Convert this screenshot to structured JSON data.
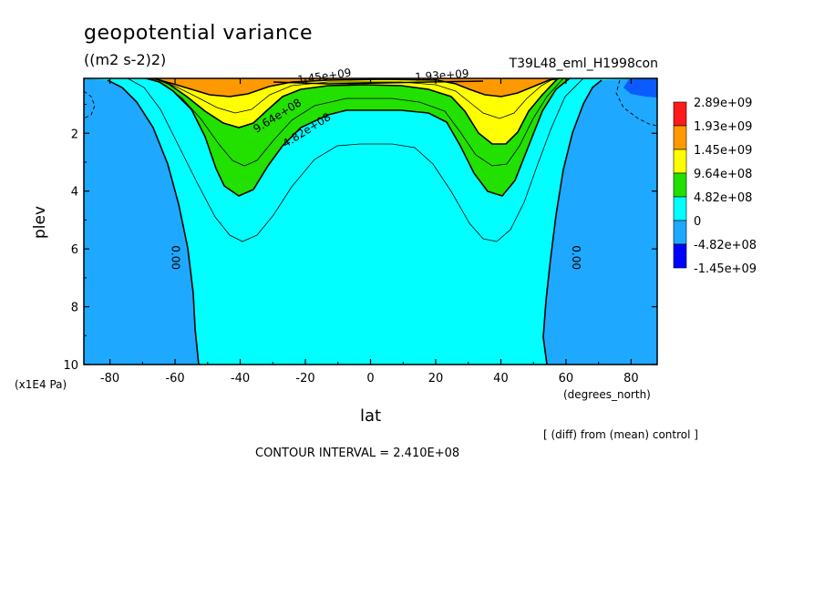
{
  "chart_data": {
    "type": "contour",
    "title": "geopotential variance",
    "units": "((m2 s-2)2)",
    "run_label": "T39L48_eml_H1998con",
    "xlabel": "lat",
    "x_unit": "(degrees_north)",
    "ylabel": "plev",
    "y_unit": "(x1E4 Pa)",
    "xlim": [
      -88,
      88
    ],
    "ylim": [
      10,
      0.1
    ],
    "x_ticks": [
      -80,
      -60,
      -40,
      -20,
      0,
      20,
      40,
      60,
      80
    ],
    "x_tick_labels": [
      "-80",
      "-60",
      "-40",
      "-20",
      "0",
      "20",
      "40",
      "60",
      "80"
    ],
    "y_ticks": [
      2,
      4,
      6,
      8,
      10
    ],
    "y_tick_labels": [
      "2",
      "4",
      "6",
      "8",
      "10"
    ],
    "contour_interval_text": "CONTOUR INTERVAL = 2.410E+08",
    "diff_text": "[ (diff) from (mean) control ]",
    "contour_labels": [
      {
        "text": "1.45e+09",
        "lat": -14,
        "plev": 0.15
      },
      {
        "text": "1.93e+09",
        "lat": 22,
        "plev": 0.12
      },
      {
        "text": "9.64e+08",
        "lat": -28,
        "plev": 1.5
      },
      {
        "text": "4.82e+08",
        "lat": -19,
        "plev": 2.0
      },
      {
        "text": "0.00",
        "lat": -61,
        "plev": 6.3
      },
      {
        "text": "0.00",
        "lat": 62,
        "plev": 6.3
      }
    ],
    "legend": {
      "placement": "right",
      "levels": [
        "2.89e+09",
        "1.93e+09",
        "1.45e+09",
        "9.64e+08",
        "4.82e+08",
        "0",
        "-4.82e+08",
        "-1.45e+09"
      ],
      "colors": [
        "#ff1a1a",
        "#ff9900",
        "#ffff00",
        "#22e000",
        "#00ffff",
        "#1ea8ff",
        "#0000ff"
      ]
    },
    "fill_colors": {
      "negative": "#1ea8ff",
      "strong_negative": "#0a5cff",
      "level_0": "#00ffff",
      "level_482": "#22e000",
      "level_964": "#ffff00",
      "level_145": "#ff9900"
    }
  }
}
